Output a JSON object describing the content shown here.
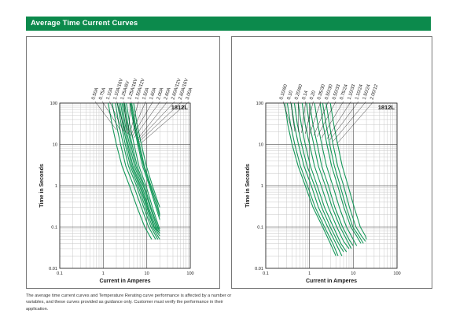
{
  "header": {
    "title": "Average Time Current Curves"
  },
  "footnote": "The average time current curves and Temperature Rerating curve performance is affected by a number or variables, and these curves provided as guidance only. Customer must verify the performance in their application.",
  "chart_data": [
    {
      "type": "line",
      "title": "1812L",
      "xlabel": "Current in Amperes",
      "ylabel": "Time in Seconds",
      "x_scale": "log",
      "y_scale": "log",
      "xlim": [
        0.1,
        100
      ],
      "ylim": [
        0.01,
        100
      ],
      "xticks": [
        "0.1",
        "1",
        "10",
        "100"
      ],
      "yticks": [
        "0.01",
        "0.1",
        "1",
        "10",
        "100"
      ],
      "grid": true,
      "line_color": "#16985a",
      "series": [
        {
          "name": "0.50A",
          "x": [
            1.3,
            1.6,
            2.0,
            2.7,
            4.0,
            6.0,
            9.0,
            13.0
          ],
          "y": [
            100,
            30,
            10,
            3,
            1,
            0.3,
            0.1,
            0.05
          ]
        },
        {
          "name": "0.75A",
          "x": [
            1.6,
            2.0,
            2.5,
            3.3,
            5.0,
            7.5,
            11.0,
            16.0
          ],
          "y": [
            100,
            30,
            10,
            3,
            1,
            0.3,
            0.1,
            0.05
          ]
        },
        {
          "name": "1.10A",
          "x": [
            1.9,
            2.3,
            2.9,
            3.8,
            5.8,
            8.5,
            12.5,
            18.0
          ],
          "y": [
            100,
            30,
            10,
            3,
            1,
            0.3,
            0.1,
            0.05
          ]
        },
        {
          "name": "1.10A/16V",
          "x": [
            2.1,
            2.6,
            3.2,
            4.2,
            6.3,
            9.3,
            13.5,
            20.0
          ],
          "y": [
            100,
            30,
            10,
            3,
            1,
            0.3,
            0.1,
            0.05
          ]
        },
        {
          "name": "1.25A/6V",
          "x": [
            2.3,
            2.8,
            3.5,
            4.5,
            6.8,
            10.0,
            14.5,
            20.0
          ],
          "y": [
            100,
            30,
            10,
            3,
            1,
            0.3,
            0.1,
            0.06
          ]
        },
        {
          "name": "1.25A/16V",
          "x": [
            2.5,
            3.0,
            3.7,
            4.8,
            7.2,
            10.5,
            15.0,
            20.0
          ],
          "y": [
            100,
            30,
            10,
            3,
            1,
            0.3,
            0.1,
            0.07
          ]
        },
        {
          "name": "1.50A/12V",
          "x": [
            2.7,
            3.2,
            4.0,
            5.2,
            7.7,
            11.0,
            16.0,
            20.0
          ],
          "y": [
            100,
            30,
            10,
            3,
            1,
            0.3,
            0.1,
            0.07
          ]
        },
        {
          "name": "1.50A",
          "x": [
            2.9,
            3.5,
            4.3,
            5.6,
            8.3,
            12.0,
            17.0,
            20.0
          ],
          "y": [
            100,
            30,
            10,
            3,
            1,
            0.3,
            0.1,
            0.08
          ]
        },
        {
          "name": "1.60A",
          "x": [
            3.1,
            3.7,
            4.6,
            6.0,
            8.8,
            12.5,
            18.0,
            20.0
          ],
          "y": [
            100,
            30,
            10,
            3,
            1,
            0.3,
            0.1,
            0.08
          ]
        },
        {
          "name": "2.00A",
          "x": [
            3.4,
            4.1,
            5.1,
            6.6,
            9.6,
            13.5,
            19.0,
            20.0
          ],
          "y": [
            100,
            30,
            10,
            3,
            1,
            0.3,
            0.1,
            0.09
          ]
        },
        {
          "name": "2.60A",
          "x": [
            4.1,
            5.0,
            6.2,
            8.0,
            11.5,
            15.5,
            20.0
          ],
          "y": [
            100,
            30,
            10,
            3,
            1,
            0.35,
            0.15
          ]
        },
        {
          "name": "2.60A/12V",
          "x": [
            4.3,
            5.2,
            6.5,
            8.5,
            12.0,
            16.5,
            20.0
          ],
          "y": [
            100,
            30,
            10,
            3,
            1,
            0.35,
            0.18
          ]
        },
        {
          "name": "2.60A/16V",
          "x": [
            4.5,
            5.5,
            6.8,
            8.8,
            12.5,
            17.0,
            20.0
          ],
          "y": [
            100,
            30,
            10,
            3,
            1,
            0.4,
            0.2
          ]
        },
        {
          "name": "3.00A",
          "x": [
            5.0,
            6.0,
            7.5,
            9.8,
            13.5,
            18.0,
            20.0
          ],
          "y": [
            100,
            30,
            10,
            3,
            1,
            0.4,
            0.3
          ]
        }
      ]
    },
    {
      "type": "line",
      "title": "1812L",
      "xlabel": "Current in Amperes",
      "ylabel": "Time in Seconds",
      "x_scale": "log",
      "y_scale": "log",
      "xlim": [
        0.1,
        100
      ],
      "ylim": [
        0.01,
        100
      ],
      "xticks": [
        "0.1",
        "1",
        "10",
        "100"
      ],
      "yticks": [
        "0.01",
        "0.1",
        "1",
        "10",
        "100"
      ],
      "grid": true,
      "line_color": "#16985a",
      "series": [
        {
          "name": "0.10/60",
          "x": [
            0.27,
            0.32,
            0.4,
            0.55,
            0.8,
            1.2,
            2.0,
            3.0,
            4.0
          ],
          "y": [
            100,
            30,
            10,
            3,
            1,
            0.3,
            0.1,
            0.04,
            0.02
          ]
        },
        {
          "name": "0.10",
          "x": [
            0.31,
            0.37,
            0.46,
            0.62,
            0.9,
            1.35,
            2.2,
            3.4,
            4.5
          ],
          "y": [
            100,
            30,
            10,
            3,
            1,
            0.3,
            0.1,
            0.04,
            0.02
          ]
        },
        {
          "name": "0.20/60",
          "x": [
            0.38,
            0.45,
            0.56,
            0.75,
            1.1,
            1.6,
            2.6,
            4.0,
            5.5
          ],
          "y": [
            100,
            30,
            10,
            3,
            1,
            0.3,
            0.1,
            0.04,
            0.02
          ]
        },
        {
          "name": "0.14",
          "x": [
            0.45,
            0.53,
            0.66,
            0.88,
            1.3,
            1.9,
            3.0,
            4.6,
            6.0
          ],
          "y": [
            100,
            30,
            10,
            3,
            1,
            0.3,
            0.1,
            0.04,
            0.025
          ]
        },
        {
          "name": "0.20",
          "x": [
            0.55,
            0.65,
            0.8,
            1.05,
            1.5,
            2.2,
            3.5,
            5.2,
            7.0
          ],
          "y": [
            100,
            30,
            10,
            3,
            1,
            0.3,
            0.1,
            0.04,
            0.025
          ]
        },
        {
          "name": "0.35/30",
          "x": [
            0.68,
            0.8,
            1.0,
            1.3,
            1.85,
            2.7,
            4.2,
            6.0,
            8.0
          ],
          "y": [
            100,
            30,
            10,
            3,
            1,
            0.3,
            0.1,
            0.045,
            0.03
          ]
        },
        {
          "name": "0.50/30",
          "x": [
            0.85,
            1.0,
            1.25,
            1.6,
            2.3,
            3.3,
            5.0,
            7.0,
            9.0
          ],
          "y": [
            100,
            30,
            10,
            3,
            1,
            0.3,
            0.1,
            0.05,
            0.03
          ]
        },
        {
          "name": "0.50/33",
          "x": [
            1.0,
            1.2,
            1.5,
            1.9,
            2.7,
            3.8,
            5.7,
            8.0,
            10.0
          ],
          "y": [
            100,
            30,
            10,
            3,
            1,
            0.3,
            0.1,
            0.05,
            0.035
          ]
        },
        {
          "name": "0.75/24",
          "x": [
            1.3,
            1.55,
            1.9,
            2.45,
            3.4,
            4.8,
            7.0,
            10.0,
            12.0
          ],
          "y": [
            100,
            30,
            10,
            3,
            1,
            0.3,
            0.1,
            0.05,
            0.035
          ]
        },
        {
          "name": "1.10/33",
          "x": [
            1.75,
            2.05,
            2.5,
            3.2,
            4.4,
            6.1,
            8.8,
            12.0,
            15.0
          ],
          "y": [
            100,
            30,
            10,
            3,
            1,
            0.3,
            0.1,
            0.06,
            0.04
          ]
        },
        {
          "name": "1.10/24",
          "x": [
            2.0,
            2.4,
            2.9,
            3.7,
            5.0,
            6.9,
            9.8,
            13.5,
            17.0
          ],
          "y": [
            100,
            30,
            10,
            3,
            1,
            0.3,
            0.1,
            0.06,
            0.04
          ]
        },
        {
          "name": "1.50/24",
          "x": [
            2.4,
            2.85,
            3.45,
            4.4,
            6.0,
            8.2,
            11.5,
            15.5,
            19.0
          ],
          "y": [
            100,
            30,
            10,
            3,
            1,
            0.3,
            0.1,
            0.06,
            0.045
          ]
        },
        {
          "name": "2.00/12",
          "x": [
            3.0,
            3.6,
            4.4,
            5.6,
            7.6,
            10.5,
            14.5,
            19.0,
            20.0
          ],
          "y": [
            100,
            30,
            10,
            3,
            1,
            0.3,
            0.1,
            0.06,
            0.05
          ]
        }
      ]
    }
  ]
}
